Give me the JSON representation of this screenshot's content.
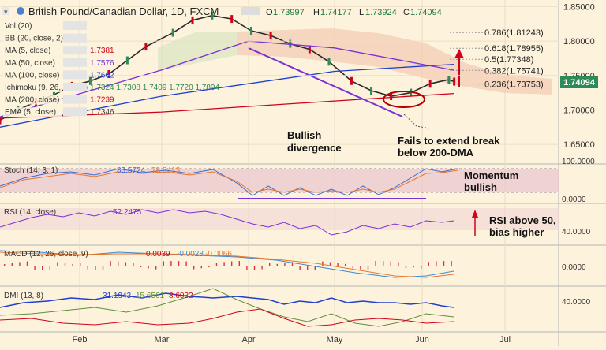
{
  "header": {
    "title": "British Pound/Canadian Dollar, 1D, FXCM",
    "ohlc": {
      "O": "1.73997",
      "H": "1.74177",
      "L": "1.73924",
      "C": "1.74094"
    },
    "ohlc_prefixes": [
      "O",
      "H",
      "L",
      "C"
    ]
  },
  "indicators": [
    {
      "label": "Vol (20)",
      "value": "",
      "color": "#3a3a3a"
    },
    {
      "label": "BB (20, close, 2)",
      "value": "",
      "color": "#3a3a3a"
    },
    {
      "label": "MA (5, close)",
      "value": "1.7381",
      "color": "#d0021b"
    },
    {
      "label": "MA (50, close)",
      "value": "1.7576",
      "color": "#7b2fd6"
    },
    {
      "label": "MA (100, close)",
      "value": "1.7662",
      "color": "#1f3fd1"
    },
    {
      "label": "Ichimoku (9, 26, 52, 26)",
      "value": "1.7324  1.7308  1.7409  1.7720  1.7894",
      "color": "#2e8b57"
    },
    {
      "label": "MA (200, close)",
      "value": "1.7239",
      "color": "#d0021b"
    },
    {
      "label": "EMA (5, close)",
      "value": "1.7346",
      "color": "#3a3a3a"
    }
  ],
  "chart_data": [
    {
      "type": "line",
      "panel": "price",
      "y_axis_ticks": [
        "1.85000",
        "1.80000",
        "1.75000",
        "1.70000",
        "1.65000"
      ],
      "ylim": [
        1.625,
        1.855
      ],
      "last_price": "1.74094",
      "x_tick_labels": [
        "Feb",
        "Mar",
        "Apr",
        "May",
        "Jun",
        "Jul"
      ],
      "fibonacci": [
        {
          "ratio": "0.786",
          "value": "1.81243"
        },
        {
          "ratio": "0.618",
          "value": "1.78955"
        },
        {
          "ratio": "0.5",
          "value": "1.77348"
        },
        {
          "ratio": "0.382",
          "value": "1.75741"
        },
        {
          "ratio": "0.236",
          "value": "1.73753"
        }
      ],
      "series": [
        {
          "name": "Price",
          "x": [
            "Jan 01",
            "Jan 08",
            "Jan 15",
            "Jan 22",
            "Jan 29",
            "Feb 05",
            "Feb 12",
            "Feb 19",
            "Feb 26",
            "Mar 05",
            "Mar 12",
            "Mar 19",
            "Mar 26",
            "Apr 02",
            "Apr 09",
            "Apr 16",
            "Apr 23",
            "Apr 30",
            "May 07",
            "May 14",
            "May 21",
            "May 28",
            "Jun 04",
            "Jun 11",
            "Jun 13"
          ],
          "values": [
            1.685,
            1.7,
            1.712,
            1.722,
            1.735,
            1.742,
            1.752,
            1.772,
            1.792,
            1.812,
            1.83,
            1.837,
            1.832,
            1.815,
            1.808,
            1.796,
            1.788,
            1.77,
            1.742,
            1.728,
            1.72,
            1.725,
            1.738,
            1.744,
            1.741
          ]
        },
        {
          "name": "MA (200, close)",
          "x": [
            "Jan 01",
            "Mar 01",
            "May 01",
            "Jun 13"
          ],
          "values": [
            1.688,
            1.697,
            1.713,
            1.7239
          ]
        },
        {
          "name": "MA (100, close)",
          "x": [
            "Jan 01",
            "Mar 01",
            "May 01",
            "Jun 13"
          ],
          "values": [
            1.675,
            1.72,
            1.756,
            1.7662
          ]
        },
        {
          "name": "MA (50, close)",
          "x": [
            "Jan 01",
            "Mar 01",
            "Apr 01",
            "May 01",
            "Jun 13"
          ],
          "values": [
            1.69,
            1.758,
            1.8,
            1.79,
            1.7576
          ]
        }
      ]
    },
    {
      "type": "line",
      "panel": "stoch",
      "label": "Stoch (14, 3, 1)",
      "values_text": [
        "83.5724",
        "78.5413"
      ],
      "y_axis_ticks": [
        "100.0000",
        "0.0000"
      ]
    },
    {
      "type": "line",
      "panel": "rsi",
      "label": "RSI (14, close)",
      "values_text": [
        "52.2475"
      ],
      "y_axis_ticks": [
        "40.0000"
      ]
    },
    {
      "type": "line",
      "panel": "macd",
      "label": "MACD (12, 26, close, 9)",
      "values_text": [
        "0.0039",
        "-0.0028",
        "-0.0066"
      ],
      "y_axis_ticks": [
        "0.0000"
      ]
    },
    {
      "type": "line",
      "panel": "dmi",
      "label": "DMI (13, 8)",
      "values_text": [
        "31.1943",
        "15.6561",
        "8.6032"
      ],
      "y_axis_ticks": [
        "40.0000"
      ]
    }
  ],
  "annotations": {
    "bullish_divergence": "Bullish\ndivergence",
    "fails_to_extend": "Fails to extend break\nbelow 200-DMA",
    "momentum_bullish": "Momentum\nbullish",
    "rsi_above_50": "RSI above 50,\nbias higher"
  },
  "colors": {
    "background": "#fdf3dc",
    "band": "#e9c8cf",
    "cloud": "#f3ccb5",
    "fib": "#cfcfcf"
  }
}
